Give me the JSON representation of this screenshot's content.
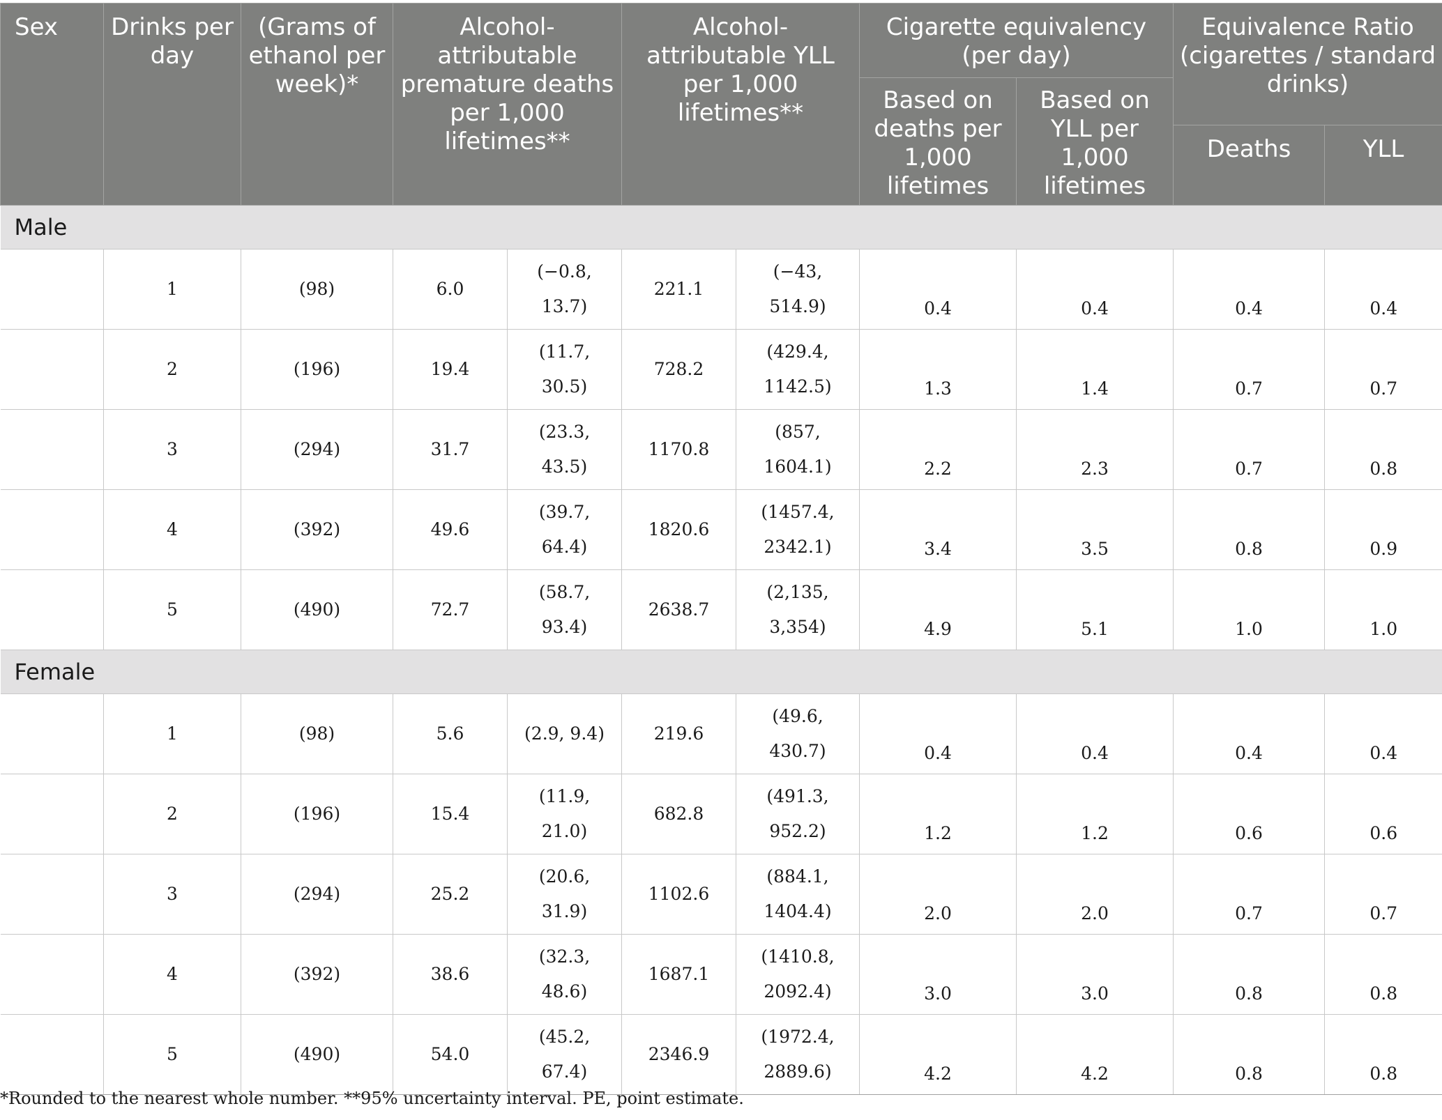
{
  "header": {
    "sex": "Sex",
    "drinks_per_day": "Drinks per day",
    "grams_per_week": "(Grams of ethanol per week)*",
    "deaths": "Alcohol-attributable premature deaths per 1,000 lifetimes**",
    "yll": "Alcohol-attributable YLL per 1,000 lifetimes**",
    "cig_equiv": "Cigarette equivalency (per day)",
    "cig_deaths": "Based on deaths per 1,000 lifetimes",
    "cig_yll": "Based on YLL per 1,000 lifetimes",
    "ratio": "Equivalence Ratio (cigarettes / standard drinks)",
    "ratio_deaths": "Deaths",
    "ratio_yll": "YLL"
  },
  "sections": [
    {
      "label": "Male",
      "rows": [
        {
          "drinks": "1",
          "grams": "(98)",
          "deaths_pe": "6.0",
          "deaths_ci": [
            "(−0.8,",
            "13.7)"
          ],
          "yll_pe": "221.1",
          "yll_ci": [
            "(−43,",
            "514.9)"
          ],
          "cig_deaths": "0.4",
          "cig_yll": "0.4",
          "ratio_deaths": "0.4",
          "ratio_yll": "0.4"
        },
        {
          "drinks": "2",
          "grams": "(196)",
          "deaths_pe": "19.4",
          "deaths_ci": [
            "(11.7,",
            "30.5)"
          ],
          "yll_pe": "728.2",
          "yll_ci": [
            "(429.4,",
            "1142.5)"
          ],
          "cig_deaths": "1.3",
          "cig_yll": "1.4",
          "ratio_deaths": "0.7",
          "ratio_yll": "0.7"
        },
        {
          "drinks": "3",
          "grams": "(294)",
          "deaths_pe": "31.7",
          "deaths_ci": [
            "(23.3,",
            "43.5)"
          ],
          "yll_pe": "1170.8",
          "yll_ci": [
            "(857,",
            "1604.1)"
          ],
          "cig_deaths": "2.2",
          "cig_yll": "2.3",
          "ratio_deaths": "0.7",
          "ratio_yll": "0.8"
        },
        {
          "drinks": "4",
          "grams": "(392)",
          "deaths_pe": "49.6",
          "deaths_ci": [
            "(39.7,",
            "64.4)"
          ],
          "yll_pe": "1820.6",
          "yll_ci": [
            "(1457.4,",
            "2342.1)"
          ],
          "cig_deaths": "3.4",
          "cig_yll": "3.5",
          "ratio_deaths": "0.8",
          "ratio_yll": "0.9"
        },
        {
          "drinks": "5",
          "grams": "(490)",
          "deaths_pe": "72.7",
          "deaths_ci": [
            "(58.7,",
            "93.4)"
          ],
          "yll_pe": "2638.7",
          "yll_ci": [
            "(2,135,",
            "3,354)"
          ],
          "cig_deaths": "4.9",
          "cig_yll": "5.1",
          "ratio_deaths": "1.0",
          "ratio_yll": "1.0"
        }
      ]
    },
    {
      "label": "Female",
      "rows": [
        {
          "drinks": "1",
          "grams": "(98)",
          "deaths_pe": "5.6",
          "deaths_ci": [
            "(2.9, 9.4)"
          ],
          "yll_pe": "219.6",
          "yll_ci": [
            "(49.6,",
            "430.7)"
          ],
          "cig_deaths": "0.4",
          "cig_yll": "0.4",
          "ratio_deaths": "0.4",
          "ratio_yll": "0.4"
        },
        {
          "drinks": "2",
          "grams": "(196)",
          "deaths_pe": "15.4",
          "deaths_ci": [
            "(11.9,",
            "21.0)"
          ],
          "yll_pe": "682.8",
          "yll_ci": [
            "(491.3,",
            "952.2)"
          ],
          "cig_deaths": "1.2",
          "cig_yll": "1.2",
          "ratio_deaths": "0.6",
          "ratio_yll": "0.6"
        },
        {
          "drinks": "3",
          "grams": "(294)",
          "deaths_pe": "25.2",
          "deaths_ci": [
            "(20.6,",
            "31.9)"
          ],
          "yll_pe": "1102.6",
          "yll_ci": [
            "(884.1,",
            "1404.4)"
          ],
          "cig_deaths": "2.0",
          "cig_yll": "2.0",
          "ratio_deaths": "0.7",
          "ratio_yll": "0.7"
        },
        {
          "drinks": "4",
          "grams": "(392)",
          "deaths_pe": "38.6",
          "deaths_ci": [
            "(32.3,",
            "48.6)"
          ],
          "yll_pe": "1687.1",
          "yll_ci": [
            "(1410.8,",
            "2092.4)"
          ],
          "cig_deaths": "3.0",
          "cig_yll": "3.0",
          "ratio_deaths": "0.8",
          "ratio_yll": "0.8"
        },
        {
          "drinks": "5",
          "grams": "(490)",
          "deaths_pe": "54.0",
          "deaths_ci": [
            "(45.2,",
            "67.4)"
          ],
          "yll_pe": "2346.9",
          "yll_ci": [
            "(1972.4,",
            "2889.6)"
          ],
          "cig_deaths": "4.2",
          "cig_yll": "4.2",
          "ratio_deaths": "0.8",
          "ratio_yll": "0.8"
        }
      ]
    }
  ],
  "footnote": "*Rounded to the nearest whole number. **95% uncertainty interval. PE, point estimate."
}
